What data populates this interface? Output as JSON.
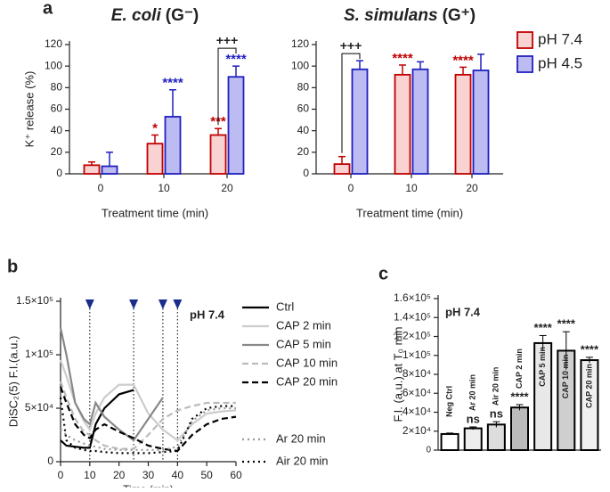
{
  "chart_data": [
    {
      "type": "bar",
      "panel": "a",
      "title_italic": "E. coli",
      "title": "(G⁻)",
      "ylabel": "K⁺ release (%)",
      "xlabel": "Treatment time (min)",
      "categories": [
        "0",
        "10",
        "20"
      ],
      "ylim": [
        0,
        120
      ],
      "yticks": [
        0,
        20,
        40,
        60,
        80,
        100,
        120
      ],
      "series": [
        {
          "color": "#f9d2d2",
          "edge_color": "#c00000",
          "values": [
            8,
            28,
            36
          ],
          "errors": [
            3,
            8,
            6
          ],
          "significance": [
            null,
            "*",
            "***"
          ]
        },
        {
          "color": "#bcbcf2",
          "edge_color": "#2020c0",
          "values": [
            7,
            53,
            90
          ],
          "errors": [
            13,
            25,
            10
          ],
          "significance": [
            null,
            "****",
            "****"
          ]
        }
      ],
      "bracket_label": "+++"
    },
    {
      "type": "bar",
      "title_italic": "S. simulans",
      "title": "(G⁺)",
      "xlabel": "Treatment time (min)",
      "categories": [
        "0",
        "10",
        "20"
      ],
      "ylim": [
        0,
        120
      ],
      "yticks": [
        0,
        20,
        40,
        60,
        80,
        100,
        120
      ],
      "series": [
        {
          "name": "pH 7.4",
          "color": "#f9d2d2",
          "edge_color": "#c00000",
          "values": [
            9,
            92,
            92
          ],
          "errors": [
            7,
            9,
            7
          ],
          "significance": [
            null,
            "****",
            "****"
          ]
        },
        {
          "name": "pH 4.5",
          "color": "#bcbcf2",
          "edge_color": "#2020c0",
          "values": [
            97,
            97,
            96
          ],
          "errors": [
            8,
            7,
            15
          ],
          "significance": [
            null,
            null,
            null
          ]
        }
      ],
      "bracket_label": "+++"
    },
    {
      "type": "line",
      "panel": "b",
      "annotation": "pH 7.4",
      "ylabel": "DiSC₂(5) F.I.(a.u.)",
      "xlabel": "Time (min)",
      "x": [
        0,
        2,
        5,
        8,
        10,
        12,
        15,
        20,
        25,
        30,
        35,
        40,
        45,
        50,
        55,
        60
      ],
      "xlim": [
        0,
        60
      ],
      "xticks": [
        0,
        10,
        20,
        30,
        40,
        50,
        60
      ],
      "ylim": [
        0,
        150000
      ],
      "yticks": [
        0,
        {
          "value": 50000,
          "label": "5×10⁴"
        },
        {
          "value": 100000,
          "label": "1×10⁵"
        },
        {
          "value": 150000,
          "label": "1.5×10⁵"
        }
      ],
      "markers_x": [
        10,
        25,
        35,
        40
      ],
      "series": [
        {
          "name": "Ctrl",
          "color": "#000000",
          "dash": "solid",
          "values": [
            20000,
            15000,
            14000,
            13000,
            13000,
            35000,
            50000,
            63000,
            67000,
            null,
            null,
            null,
            null,
            null,
            null,
            null
          ]
        },
        {
          "name": "CAP 2 min",
          "color": "#cccccc",
          "dash": "solid",
          "values": [
            95000,
            80000,
            55000,
            38000,
            30000,
            45000,
            60000,
            72000,
            72000,
            45000,
            30000,
            20000,
            35000,
            45000,
            47000,
            48000
          ]
        },
        {
          "name": "CAP 5 min",
          "color": "#888888",
          "dash": "solid",
          "values": [
            125000,
            100000,
            55000,
            40000,
            35000,
            55000,
            42000,
            30000,
            20000,
            40000,
            60000,
            null,
            null,
            null,
            null,
            null
          ]
        },
        {
          "name": "CAP 10 min",
          "color": "#bbbbbb",
          "dash": "dashed",
          "values": [
            75000,
            60000,
            40000,
            28000,
            25000,
            20000,
            15000,
            12000,
            12000,
            25000,
            40000,
            48000,
            52000,
            55000,
            55000,
            55000
          ]
        },
        {
          "name": "CAP 20 min",
          "color": "#000000",
          "dash": "dashed",
          "values": [
            70000,
            55000,
            35000,
            25000,
            22000,
            30000,
            35000,
            28000,
            22000,
            15000,
            12000,
            10000,
            25000,
            35000,
            40000,
            42000
          ]
        },
        {
          "name": "Ar 20 min",
          "color": "#999999",
          "dash": "dotted",
          "values": [
            30000,
            25000,
            20000,
            17000,
            15000,
            14000,
            12000,
            11000,
            11000,
            11000,
            11000,
            14000,
            38000,
            48000,
            50000,
            50000
          ]
        },
        {
          "name": "Air 20 min",
          "color": "#000000",
          "dash": "dotted",
          "values": [
            60000,
            20000,
            13000,
            11000,
            10000,
            10000,
            9000,
            8000,
            8000,
            8000,
            9000,
            10000,
            40000,
            50000,
            52000,
            52000
          ]
        }
      ]
    },
    {
      "type": "bar",
      "panel": "c",
      "annotation": "pH 7.4",
      "ylabel": "F.I. (a.u.) at T₀ min",
      "categories": [
        "Neg Ctrl",
        "Ar 20 min",
        "Air 20 min",
        "CAP 2 min",
        "CAP 5 min",
        "CAP 10 min",
        "CAP 20 min"
      ],
      "ylim": [
        0,
        160000
      ],
      "yticks": [
        0,
        {
          "value": 20000,
          "label": "2×10⁴"
        },
        {
          "value": 40000,
          "label": "4×10⁴"
        },
        {
          "value": 60000,
          "label": "6×10⁴"
        },
        {
          "value": 80000,
          "label": "8×10⁴"
        },
        {
          "value": 100000,
          "label": "1×10⁵"
        },
        {
          "value": 120000,
          "label": "1.2×10⁵"
        },
        {
          "value": 140000,
          "label": "1.4×10⁵"
        },
        {
          "value": 160000,
          "label": "1.6×10⁵"
        }
      ],
      "values": [
        17000,
        23000,
        27000,
        45000,
        113000,
        105000,
        95000
      ],
      "errors": [
        1000,
        1500,
        3000,
        3000,
        8000,
        20000,
        3000
      ],
      "colors": [
        "#ffffff",
        "#eeeeee",
        "#dddddd",
        "#bbbbbb",
        "#e8e8e8",
        "#cfcfcf",
        "#f0f0f0"
      ],
      "edge_color": "#000000",
      "significance": [
        null,
        "ns",
        "ns",
        "****",
        "****",
        "****",
        "****"
      ]
    }
  ]
}
